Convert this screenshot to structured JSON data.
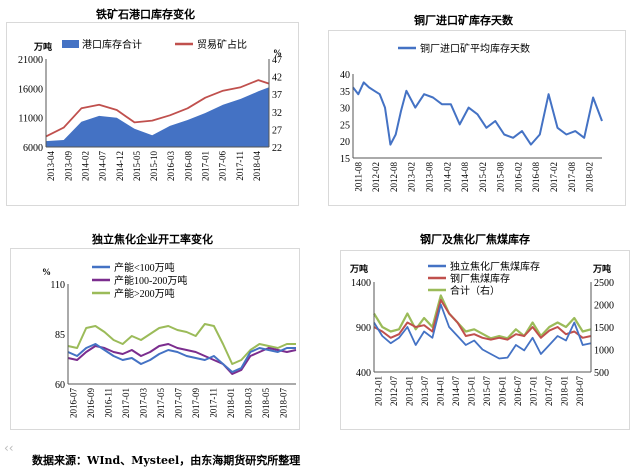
{
  "footer": {
    "source": "数据来源：WInd、Mysteel，由东海期货研究所整理"
  },
  "colors": {
    "blue": "#4472c4",
    "red": "#c0504d",
    "green": "#9bbb59",
    "darkblue": "#1f3d7a"
  },
  "chart_data": [
    {
      "type": "area+line",
      "title": "铁矿石港口库存变化",
      "left_unit": "万吨",
      "right_unit": "%",
      "legend": [
        "港口库存合计",
        "贸易矿占比"
      ],
      "ylim_left": [
        6000,
        21000
      ],
      "yticks_left": [
        6000,
        11000,
        16000,
        21000
      ],
      "ylim_right": [
        22,
        47
      ],
      "yticks_right": [
        22,
        27,
        32,
        37,
        42,
        47
      ],
      "x_tick_labels": [
        "2013-04",
        "2013-09",
        "2014-02",
        "2014-07",
        "2014-12",
        "2015-05",
        "2015-10",
        "2016-03",
        "2016-08",
        "2017-01",
        "2017-06",
        "2017-11",
        "2018-04"
      ],
      "x": [
        0,
        1,
        2,
        3,
        4,
        5,
        6,
        7,
        8,
        9,
        10,
        11,
        12,
        12.6
      ],
      "series": [
        {
          "name": "港口库存合计",
          "axis": "left",
          "values": [
            7000,
            7200,
            10300,
            11300,
            11000,
            9100,
            8000,
            9600,
            10600,
            11800,
            13200,
            14200,
            15500,
            16200
          ]
        },
        {
          "name": "贸易矿占比",
          "axis": "right",
          "values": [
            25,
            27.5,
            33,
            34,
            32.5,
            29,
            29.5,
            31,
            33,
            36,
            38,
            39,
            41,
            40
          ]
        }
      ]
    },
    {
      "type": "line",
      "title": "铜厂进口矿库存天数",
      "legend": [
        "铜厂进口矿平均库存天数"
      ],
      "ylim": [
        15,
        40
      ],
      "yticks": [
        15,
        20,
        25,
        30,
        35,
        40
      ],
      "x_tick_labels": [
        "2011-08",
        "2012-02",
        "2012-08",
        "2013-02",
        "2013-08",
        "2014-02",
        "2014-08",
        "2015-02",
        "2015-08",
        "2016-02",
        "2016-08",
        "2017-02",
        "2017-08",
        "2018-02"
      ],
      "x": [
        0,
        0.3,
        0.6,
        0.9,
        1.2,
        1.5,
        1.8,
        2.1,
        2.4,
        2.7,
        3,
        3.5,
        4,
        4.5,
        5,
        5.5,
        6,
        6.5,
        7,
        7.5,
        8,
        8.5,
        9,
        9.5,
        10,
        10.5,
        11,
        11.5,
        12,
        12.5,
        13,
        13.5,
        14
      ],
      "series": [
        {
          "name": "铜厂进口矿平均库存天数",
          "values": [
            36,
            34,
            37.5,
            36,
            35,
            34,
            30,
            19,
            22,
            29,
            35,
            30,
            34,
            33,
            31,
            31,
            25,
            30,
            28,
            24,
            26,
            22,
            21,
            23,
            19,
            22,
            34,
            24,
            22,
            23,
            21,
            33,
            26
          ]
        }
      ]
    },
    {
      "type": "line",
      "title": "独立焦化企业开工率变化",
      "y_unit": "%",
      "ylim": [
        60,
        110
      ],
      "yticks": [
        60,
        85,
        110
      ],
      "x_tick_labels": [
        "2016-07",
        "2016-09",
        "2016-11",
        "2017-01",
        "2017-03",
        "2017-05",
        "2017-07",
        "2017-09",
        "2017-11",
        "2018-01",
        "2018-03",
        "2018-05",
        "2018-07"
      ],
      "x": [
        0,
        0.5,
        1,
        1.5,
        2,
        2.5,
        3,
        3.5,
        4,
        4.5,
        5,
        5.5,
        6,
        6.5,
        7,
        7.5,
        8,
        8.5,
        9,
        9.5,
        10,
        10.5,
        11,
        11.5,
        12,
        12.5
      ],
      "series": [
        {
          "name": "产能<100万吨",
          "values": [
            76,
            74,
            78,
            80,
            77,
            74,
            72,
            73,
            70,
            72,
            75,
            77,
            76,
            74,
            73,
            72,
            74,
            70,
            66,
            68,
            76,
            78,
            77,
            76,
            78,
            78
          ]
        },
        {
          "name": "产能100-200万吨",
          "values": [
            73,
            72,
            76,
            79,
            78,
            76,
            75,
            77,
            74,
            76,
            79,
            80,
            78,
            77,
            76,
            74,
            72,
            70,
            65,
            67,
            74,
            76,
            78,
            77,
            76,
            77
          ]
        },
        {
          "name": "产能>200万吨",
          "values": [
            79,
            78,
            88,
            89,
            86,
            82,
            80,
            84,
            82,
            85,
            88,
            89,
            87,
            86,
            84,
            90,
            89,
            80,
            70,
            72,
            77,
            80,
            79,
            78,
            80,
            80
          ]
        }
      ]
    },
    {
      "type": "line",
      "title": "钢厂及焦化厂焦煤库存",
      "left_unit": "万吨",
      "right_unit": "万吨",
      "legend": [
        "独立焦化厂焦煤库存",
        "钢厂焦煤库存",
        "合计（右）"
      ],
      "ylim_left": [
        400,
        1400
      ],
      "yticks_left": [
        400,
        900,
        1400
      ],
      "ylim_right": [
        500,
        2500
      ],
      "yticks_right": [
        500,
        1000,
        1500,
        2000,
        2500
      ],
      "x_tick_labels": [
        "2012-01",
        "2012-07",
        "2013-01",
        "2013-07",
        "2014-01",
        "2014-07",
        "2015-01",
        "2015-07",
        "2016-01",
        "2016-07",
        "2017-01",
        "2017-07",
        "2018-01",
        "2018-07"
      ],
      "x": [
        0,
        0.5,
        1,
        1.5,
        2,
        2.5,
        3,
        3.5,
        4,
        4.5,
        5,
        5.5,
        6,
        6.5,
        7,
        7.5,
        8,
        8.5,
        9,
        9.5,
        10,
        10.5,
        11,
        11.5,
        12,
        12.5,
        13
      ],
      "series": [
        {
          "name": "独立焦化厂焦煤库存",
          "axis": "left",
          "values": [
            950,
            800,
            720,
            780,
            900,
            700,
            850,
            780,
            1150,
            900,
            800,
            700,
            750,
            650,
            600,
            550,
            560,
            700,
            640,
            780,
            600,
            700,
            800,
            750,
            950,
            700,
            720
          ]
        },
        {
          "name": "钢厂焦煤库存",
          "axis": "left",
          "values": [
            900,
            850,
            780,
            820,
            950,
            900,
            920,
            850,
            1200,
            1050,
            950,
            800,
            820,
            780,
            760,
            780,
            760,
            820,
            800,
            900,
            780,
            860,
            900,
            820,
            850,
            780,
            800
          ]
        },
        {
          "name": "合计（右）",
          "axis": "right",
          "values": [
            1800,
            1500,
            1400,
            1450,
            1800,
            1450,
            1700,
            1500,
            2200,
            1800,
            1600,
            1400,
            1450,
            1350,
            1250,
            1300,
            1250,
            1450,
            1300,
            1600,
            1300,
            1500,
            1600,
            1500,
            1700,
            1400,
            1450
          ]
        }
      ]
    }
  ]
}
